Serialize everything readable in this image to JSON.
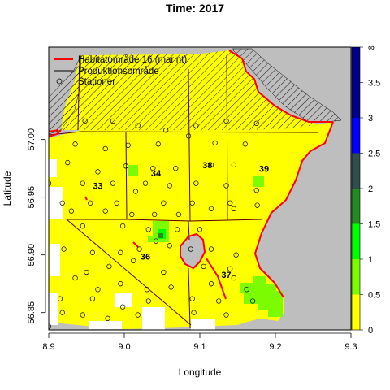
{
  "title": "Time: 2017",
  "xlabel": "Longitude",
  "ylabel": "Latitude",
  "x_ticks": [
    "8.9",
    "9.0",
    "9.1",
    "9.2",
    "9.3"
  ],
  "y_ticks": [
    "56.85",
    "56.90",
    "56.95",
    "57.00"
  ],
  "colorbar_ticks": [
    "0",
    "0.5",
    "1",
    "1.5",
    "2",
    "2.5",
    "3",
    "3.5",
    "∞"
  ],
  "legend": [
    {
      "label": "Habitatområde 16 (marint)",
      "symbol": "red-line"
    },
    {
      "label": "Produktionsområde",
      "symbol": "dark-line"
    },
    {
      "label": "Stationer",
      "symbol": "circle"
    }
  ],
  "areas": [
    "33",
    "34",
    "36",
    "37",
    "38",
    "39"
  ],
  "colors": {
    "land": "#bebebe",
    "yellow": "#ffff00",
    "light_green": "#7cfc00",
    "green": "#00ff00",
    "dark_green": "#228b22",
    "darker_green": "#006400",
    "teal": "#2f4f4f",
    "blue": "#0000ff",
    "navy": "#00008b",
    "habitat": "#ff0000",
    "production": "#5a0000"
  },
  "chart_data": {
    "type": "heatmap",
    "xlim": [
      8.9,
      9.3
    ],
    "ylim": [
      56.835,
      57.08
    ],
    "colorbar_range": [
      0,
      4
    ],
    "colorbar_bands": [
      {
        "from": 0,
        "to": 0.5,
        "color": "#ffff00"
      },
      {
        "from": 0.5,
        "to": 1,
        "color": "#7cfc00"
      },
      {
        "from": 1,
        "to": 1.5,
        "color": "#00ff00"
      },
      {
        "from": 1.5,
        "to": 2,
        "color": "#228b22"
      },
      {
        "from": 2,
        "to": 2.5,
        "color": "#2f4f4f"
      },
      {
        "from": 2.5,
        "to": 3,
        "color": "#0000ff"
      },
      {
        "from": 3,
        "to": 3.5,
        "color": "#00008b"
      },
      {
        "from": 3.5,
        "to": 4,
        "color": "#00008b"
      }
    ],
    "area_label_positions": [
      {
        "label": "33",
        "lon": 8.965,
        "lat": 56.957
      },
      {
        "label": "34",
        "lon": 9.042,
        "lat": 56.968
      },
      {
        "label": "36",
        "lon": 9.028,
        "lat": 56.896
      },
      {
        "label": "37",
        "lon": 9.135,
        "lat": 56.88
      },
      {
        "label": "38",
        "lon": 9.11,
        "lat": 56.975
      },
      {
        "label": "39",
        "lon": 9.185,
        "lat": 56.972
      }
    ],
    "stations": [
      [
        8.948,
        57.016
      ],
      [
        8.985,
        57.016
      ],
      [
        9.018,
        57.012
      ],
      [
        9.055,
        57.008
      ],
      [
        9.095,
        57.012
      ],
      [
        9.135,
        57.016
      ],
      [
        9.175,
        57.014
      ],
      [
        8.935,
        56.996
      ],
      [
        8.975,
        56.992
      ],
      [
        9.005,
        56.995
      ],
      [
        9.045,
        56.996
      ],
      [
        9.085,
        57.003
      ],
      [
        9.12,
        56.997
      ],
      [
        9.16,
        56.996
      ],
      [
        8.925,
        56.98
      ],
      [
        8.965,
        56.972
      ],
      [
        9.002,
        56.977
      ],
      [
        9.038,
        56.975
      ],
      [
        9.068,
        56.975
      ],
      [
        9.115,
        56.978
      ],
      [
        9.145,
        56.978
      ],
      [
        8.9,
        56.962
      ],
      [
        8.945,
        56.962
      ],
      [
        8.985,
        56.962
      ],
      [
        9.028,
        56.962
      ],
      [
        9.06,
        56.96
      ],
      [
        9.095,
        56.962
      ],
      [
        9.135,
        56.96
      ],
      [
        9.175,
        56.956
      ],
      [
        8.918,
        56.945
      ],
      [
        8.955,
        56.945
      ],
      [
        8.99,
        56.945
      ],
      [
        9.015,
        56.955
      ],
      [
        9.052,
        56.945
      ],
      [
        9.09,
        56.945
      ],
      [
        9.14,
        56.945
      ],
      [
        9.176,
        56.943
      ],
      [
        8.93,
        56.938
      ],
      [
        8.975,
        56.938
      ],
      [
        9.01,
        56.935
      ],
      [
        9.04,
        56.935
      ],
      [
        9.072,
        56.935
      ],
      [
        9.115,
        56.94
      ],
      [
        9.145,
        56.94
      ],
      [
        8.945,
        56.925
      ],
      [
        8.998,
        56.925
      ],
      [
        9.032,
        56.922
      ],
      [
        9.07,
        56.922
      ],
      [
        9.1,
        56.922
      ],
      [
        8.958,
        56.902
      ],
      [
        8.995,
        56.902
      ],
      [
        9.02,
        56.905
      ],
      [
        9.042,
        56.912
      ],
      [
        9.06,
        56.908
      ],
      [
        9.088,
        56.905
      ],
      [
        9.115,
        56.905
      ],
      [
        9.148,
        56.9
      ],
      [
        8.92,
        56.905
      ],
      [
        8.95,
        56.885
      ],
      [
        8.98,
        56.89
      ],
      [
        9.012,
        56.895
      ],
      [
        9.052,
        56.885
      ],
      [
        9.105,
        56.89
      ],
      [
        9.14,
        56.888
      ],
      [
        8.935,
        56.88
      ],
      [
        8.965,
        56.87
      ],
      [
        8.995,
        56.875
      ],
      [
        9.03,
        56.87
      ],
      [
        9.062,
        56.872
      ],
      [
        9.115,
        56.875
      ],
      [
        9.145,
        56.88
      ],
      [
        9.162,
        56.87
      ],
      [
        8.915,
        56.862
      ],
      [
        8.958,
        56.862
      ],
      [
        8.998,
        56.855
      ],
      [
        9.032,
        56.86
      ],
      [
        9.09,
        56.862
      ],
      [
        9.125,
        56.86
      ],
      [
        9.17,
        56.86
      ],
      [
        8.918,
        56.85
      ],
      [
        8.945,
        56.848
      ],
      [
        8.978,
        56.845
      ],
      [
        9.018,
        56.848
      ],
      [
        9.092,
        56.85
      ],
      [
        9.135,
        56.848
      ],
      [
        8.9,
        56.838
      ]
    ]
  }
}
